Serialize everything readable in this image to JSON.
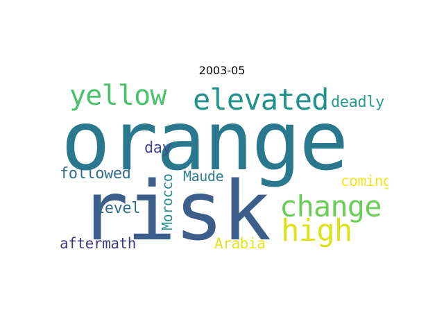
{
  "title": "2003-05",
  "words": [
    {
      "text": "orange",
      "color": "#2a788e"
    },
    {
      "text": "risk",
      "color": "#3b5f8a"
    },
    {
      "text": "yellow",
      "color": "#4ac16d"
    },
    {
      "text": "elevated",
      "color": "#21918c"
    },
    {
      "text": "deadly",
      "color": "#2a9d8f"
    },
    {
      "text": "change",
      "color": "#6ccd5a"
    },
    {
      "text": "high",
      "color": "#dde318"
    },
    {
      "text": "day",
      "color": "#46478f"
    },
    {
      "text": "followed",
      "color": "#2f6e8e"
    },
    {
      "text": "Maude",
      "color": "#2d7f8e"
    },
    {
      "text": "Morocco",
      "color": "#2a8f8d"
    },
    {
      "text": "coming",
      "color": "#f2e51d"
    },
    {
      "text": "level",
      "color": "#2f6e8e"
    },
    {
      "text": "aftermath",
      "color": "#3e3a7c"
    },
    {
      "text": "Arabia",
      "color": "#e6e419"
    }
  ]
}
